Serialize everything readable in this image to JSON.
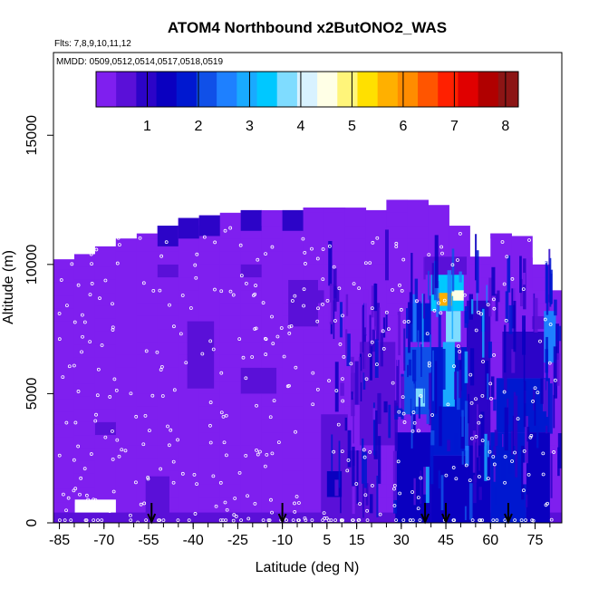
{
  "chart_data": {
    "type": "heatmap",
    "title": "ATOM4 Northbound x2ButONO2_WAS",
    "subtitle_flights": "Flts: 7,8,9,10,11,12",
    "subtitle_dates": "MMDD: 0509,0512,0514,0517,0518,0519",
    "xlabel": "Latitude (deg N)",
    "ylabel": "Altitude (m)",
    "xlim": [
      -87,
      84
    ],
    "ylim": [
      0,
      18200
    ],
    "x_ticks": [
      -85,
      -70,
      -55,
      -40,
      -25,
      -10,
      5,
      15,
      30,
      45,
      60,
      75
    ],
    "y_ticks": [
      0,
      5000,
      10000,
      15000
    ],
    "colorbar": {
      "min": 0,
      "max": 8.25,
      "ticks": [
        1,
        2,
        3,
        4,
        5,
        6,
        7,
        8
      ],
      "colors": [
        "#7F1FEF",
        "#5A10D8",
        "#2C04C8",
        "#0A00C0",
        "#0018D0",
        "#1050E8",
        "#1E80FF",
        "#19AAFF",
        "#00C8FF",
        "#7FDCFF",
        "#D8F2FF",
        "#FFFFE6",
        "#FFF57A",
        "#FFE000",
        "#FFB000",
        "#FF8C00",
        "#FF5500",
        "#FF2000",
        "#E00000",
        "#B00000",
        "#8C1515"
      ]
    },
    "arrows_latitude": [
      -54,
      -10,
      38,
      45,
      66
    ],
    "columns": [
      {
        "lat0": -87,
        "lat1": -80,
        "top": 10200,
        "base": 300,
        "upper_dark": false
      },
      {
        "lat0": -80,
        "lat1": -73,
        "top": 10400,
        "base": 900,
        "upper_dark": false
      },
      {
        "lat0": -73,
        "lat1": -66,
        "top": 10700,
        "base": 900,
        "upper_dark": false
      },
      {
        "lat0": -66,
        "lat1": -59,
        "top": 11000,
        "base": 0,
        "upper_dark": false
      },
      {
        "lat0": -59,
        "lat1": -52,
        "top": 11200,
        "base": 0,
        "upper_dark": false
      },
      {
        "lat0": -52,
        "lat1": -45,
        "top": 11500,
        "base": 0,
        "upper_dark": true
      },
      {
        "lat0": -45,
        "lat1": -38,
        "top": 11800,
        "base": 0,
        "upper_dark": true
      },
      {
        "lat0": -38,
        "lat1": -31,
        "top": 11900,
        "base": 0,
        "upper_dark": true
      },
      {
        "lat0": -31,
        "lat1": -24,
        "top": 12000,
        "base": 0,
        "upper_dark": false
      },
      {
        "lat0": -24,
        "lat1": -17,
        "top": 12100,
        "base": 0,
        "upper_dark": true
      },
      {
        "lat0": -17,
        "lat1": -10,
        "top": 12100,
        "base": 0,
        "upper_dark": false
      },
      {
        "lat0": -10,
        "lat1": -3,
        "top": 12100,
        "base": 0,
        "upper_dark": true
      },
      {
        "lat0": -3,
        "lat1": 4,
        "top": 12200,
        "base": 0,
        "upper_dark": false
      },
      {
        "lat0": 4,
        "lat1": 11,
        "top": 12200,
        "base": 0,
        "upper_dark": false
      },
      {
        "lat0": 11,
        "lat1": 18,
        "top": 12200,
        "base": 0,
        "upper_dark": false
      },
      {
        "lat0": 18,
        "lat1": 25,
        "top": 12100,
        "base": 0,
        "upper_dark": false
      },
      {
        "lat0": 25,
        "lat1": 32,
        "top": 12500,
        "base": 0,
        "upper_dark": false
      },
      {
        "lat0": 32,
        "lat1": 39,
        "top": 12500,
        "base": 0,
        "upper_dark": false
      },
      {
        "lat0": 39,
        "lat1": 46,
        "top": 12300,
        "base": 0,
        "upper_dark": false
      },
      {
        "lat0": 46,
        "lat1": 53,
        "top": 11500,
        "base": 0,
        "upper_dark": false
      },
      {
        "lat0": 53,
        "lat1": 60,
        "top": 10300,
        "base": 0,
        "upper_dark": false
      },
      {
        "lat0": 60,
        "lat1": 67,
        "top": 11200,
        "base": 0,
        "upper_dark": false
      },
      {
        "lat0": 67,
        "lat1": 74,
        "top": 11100,
        "base": 0,
        "upper_dark": false
      },
      {
        "lat0": 74,
        "lat1": 80,
        "top": 10000,
        "base": 0,
        "upper_dark": false
      },
      {
        "lat0": 80,
        "lat1": 84,
        "top": 9000,
        "base": 0,
        "upper_dark": false
      }
    ],
    "features": [
      {
        "lat0": -87,
        "lat1": 84,
        "alt0": 0,
        "alt1": 400,
        "value": 0.6
      },
      {
        "lat0": -56,
        "lat1": -48,
        "alt0": 0,
        "alt1": 1800,
        "value": 0.5
      },
      {
        "lat0": -42,
        "lat1": -33,
        "alt0": 5200,
        "alt1": 7800,
        "value": 0.45
      },
      {
        "lat0": -24,
        "lat1": -12,
        "alt0": 5000,
        "alt1": 6000,
        "value": 0.5
      },
      {
        "lat0": -8,
        "lat1": 2,
        "alt0": 7600,
        "alt1": 9400,
        "value": 0.4
      },
      {
        "lat0": 3,
        "lat1": 12,
        "alt0": 0,
        "alt1": 4200,
        "value": 0.5
      },
      {
        "lat0": 5,
        "lat1": 10,
        "alt0": 1000,
        "alt1": 2000,
        "value": 1.4
      },
      {
        "lat0": 10,
        "lat1": 22,
        "alt0": 0,
        "alt1": 2800,
        "value": 0.6
      },
      {
        "lat0": 16,
        "lat1": 28,
        "alt0": 3000,
        "alt1": 7000,
        "value": 0.5
      },
      {
        "lat0": 28,
        "lat1": 40,
        "alt0": 0,
        "alt1": 3500,
        "value": 1.3
      },
      {
        "lat0": 31,
        "lat1": 40,
        "alt0": 4200,
        "alt1": 6800,
        "value": 2.3
      },
      {
        "lat0": 34,
        "lat1": 38,
        "alt0": 4500,
        "alt1": 5200,
        "value": 3.8
      },
      {
        "lat0": 33,
        "lat1": 40,
        "alt0": 7000,
        "alt1": 8500,
        "value": 1.7
      },
      {
        "lat0": 40,
        "lat1": 52,
        "alt0": 0,
        "alt1": 2600,
        "value": 1.5
      },
      {
        "lat0": 40,
        "lat1": 52,
        "alt0": 2600,
        "alt1": 6800,
        "value": 1.9
      },
      {
        "lat0": 44,
        "lat1": 48,
        "alt0": 4500,
        "alt1": 7000,
        "value": 3.0
      },
      {
        "lat0": 45,
        "lat1": 50,
        "alt0": 7000,
        "alt1": 8200,
        "value": 3.6
      },
      {
        "lat0": 40,
        "lat1": 51,
        "alt0": 8200,
        "alt1": 9700,
        "value": 3.3
      },
      {
        "lat0": 42,
        "lat1": 47,
        "alt0": 8400,
        "alt1": 8900,
        "value": 5.6
      },
      {
        "lat0": 47,
        "lat1": 51,
        "alt0": 8600,
        "alt1": 9000,
        "value": 4.6
      },
      {
        "lat0": 38,
        "lat1": 52,
        "alt0": 9600,
        "alt1": 10300,
        "value": 0.55
      },
      {
        "lat0": 52,
        "lat1": 60,
        "alt0": 3000,
        "alt1": 8600,
        "value": 1.1
      },
      {
        "lat0": 52,
        "lat1": 60,
        "alt0": 0,
        "alt1": 3000,
        "value": 1.5
      },
      {
        "lat0": 60,
        "lat1": 72,
        "alt0": 0,
        "alt1": 3500,
        "value": 1.8
      },
      {
        "lat0": 62,
        "lat1": 80,
        "alt0": 3500,
        "alt1": 5600,
        "value": 1.6
      },
      {
        "lat0": 72,
        "lat1": 80,
        "alt0": 0,
        "alt1": 3500,
        "value": 1.5
      },
      {
        "lat0": 64,
        "lat1": 78,
        "alt0": 5600,
        "alt1": 7400,
        "value": 0.9
      },
      {
        "lat0": 78,
        "lat1": 82,
        "alt0": 6200,
        "alt1": 8200,
        "value": 2.7
      }
    ]
  }
}
